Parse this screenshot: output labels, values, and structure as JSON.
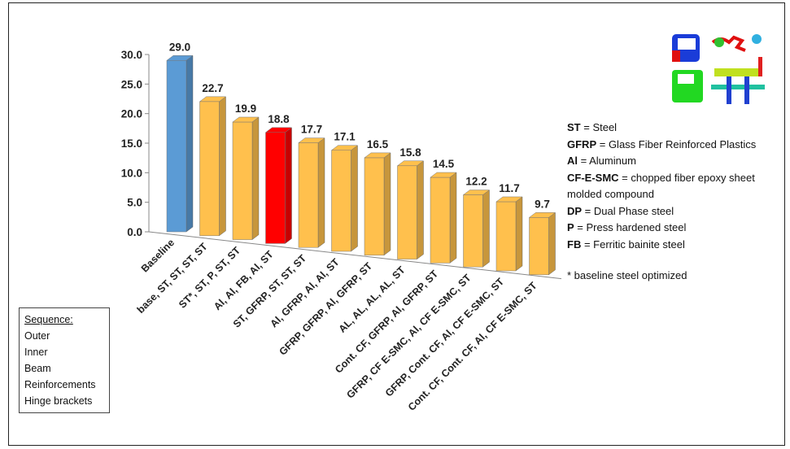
{
  "chart_data": {
    "type": "bar3d",
    "categories": [
      "Baseline",
      "base, ST, ST, ST, ST",
      "ST*, ST, P, ST, ST",
      "Al, Al, FB, Al, ST",
      "ST, GFRP, ST, ST, ST",
      "Al, GFRP, Al, Al, ST",
      "GFRP, GFRP, Al, GFRP, ST",
      "AL, AL, AL, AL, ST",
      "Cont. CF, GFRP, Al, GFRP, ST",
      "GFRP, CF E-SMC, Al, CF E-SMC, ST",
      "GFRP, Cont. CF, Al, CF E-SMC, ST",
      "Cont. CF, Cont. CF, Al, CF E-SMC, ST"
    ],
    "values": [
      29.0,
      22.7,
      19.9,
      18.8,
      17.7,
      17.1,
      16.5,
      15.8,
      14.5,
      12.2,
      11.7,
      9.7
    ],
    "value_labels": [
      "29.0",
      "22.7",
      "19.9",
      "18.8",
      "17.7",
      "17.1",
      "16.5",
      "15.8",
      "14.5",
      "12.2",
      "11.7",
      "9.7"
    ],
    "colors": [
      "#5b9bd5",
      "#ffc04d",
      "#ffc04d",
      "#ff0000",
      "#ffc04d",
      "#ffc04d",
      "#ffc04d",
      "#ffc04d",
      "#ffc04d",
      "#ffc04d",
      "#ffc04d",
      "#ffc04d"
    ],
    "ylim": [
      0,
      30
    ],
    "yticks": [
      {
        "value": 0,
        "label": "0.0"
      },
      {
        "value": 5,
        "label": "5.0"
      },
      {
        "value": 10,
        "label": "10.0"
      },
      {
        "value": 15,
        "label": "15.0"
      },
      {
        "value": 20,
        "label": "20.0"
      },
      {
        "value": 25,
        "label": "25.0"
      },
      {
        "value": 30,
        "label": "30.0"
      }
    ]
  },
  "legend": {
    "items": [
      {
        "abbr": "ST",
        "meaning": " = Steel"
      },
      {
        "abbr": "GFRP",
        "meaning": " = Glass Fiber Reinforced Plastics"
      },
      {
        "abbr": "Al",
        "meaning": " = Aluminum"
      },
      {
        "abbr": "CF-E-SMC",
        "meaning": " = chopped fiber epoxy sheet  molded compound"
      },
      {
        "abbr": "DP",
        "meaning": " = Dual Phase steel"
      },
      {
        "abbr": "P",
        "meaning": " = Press hardened steel"
      },
      {
        "abbr": "FB",
        "meaning": " = Ferritic bainite steel"
      }
    ],
    "note": "* baseline steel optimized"
  },
  "sequence": {
    "title": "Sequence:",
    "items": [
      "Outer",
      "Inner",
      "Beam",
      "Reinforcements",
      "Hinge brackets"
    ]
  }
}
